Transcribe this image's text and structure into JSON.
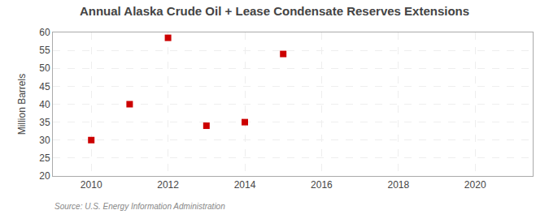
{
  "chart_data": {
    "type": "scatter",
    "title": "Annual Alaska Crude Oil + Lease Condensate Reserves Extensions",
    "ylabel": "Million Barrels",
    "annotation": "Source: U.S. Energy Information Administration",
    "x": [
      2010,
      2011,
      2012,
      2013,
      2014,
      2015
    ],
    "values": [
      30.0,
      40.0,
      58.5,
      34.0,
      35.0,
      54.0
    ],
    "color": "#cc0000",
    "marker": "square",
    "xlim": [
      2009,
      2021.5
    ],
    "ylim": [
      20,
      60
    ],
    "xticks": [
      2010,
      2012,
      2014,
      2016,
      2018,
      2020
    ],
    "yticks": [
      20,
      25,
      30,
      35,
      40,
      45,
      50,
      55,
      60
    ],
    "grid": true
  }
}
